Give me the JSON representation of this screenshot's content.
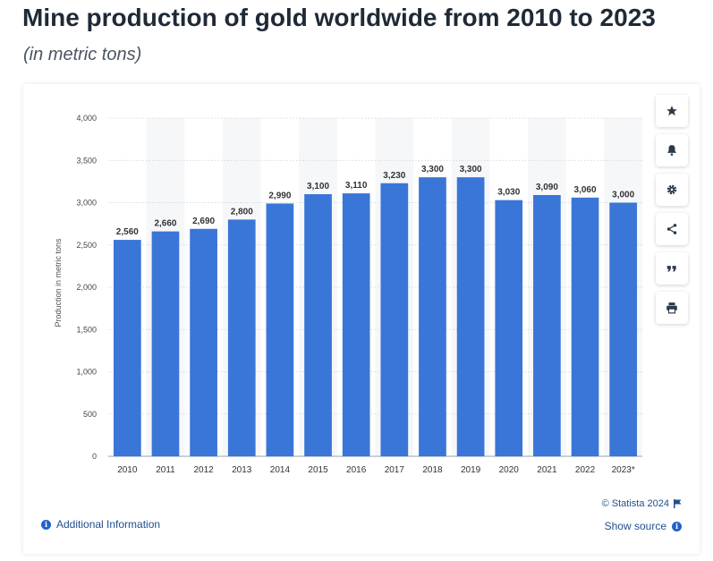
{
  "header": {
    "title": "Mine production of gold worldwide from 2010 to 2023",
    "subtitle": "(in metric tons)"
  },
  "toolbar": {
    "buttons": [
      {
        "name": "favorite",
        "icon": "star-icon"
      },
      {
        "name": "notification",
        "icon": "bell-icon"
      },
      {
        "name": "settings",
        "icon": "gear-icon"
      },
      {
        "name": "share",
        "icon": "share-icon"
      },
      {
        "name": "cite",
        "icon": "quote-icon"
      },
      {
        "name": "print",
        "icon": "print-icon"
      }
    ]
  },
  "footer": {
    "copyright": "© Statista 2024",
    "show_source": "Show source",
    "additional_info": "Additional Information"
  },
  "colors": {
    "bar": "#3a76d8",
    "accent": "#1f62c9"
  },
  "chart_data": {
    "type": "bar",
    "title": "Mine production of gold worldwide from 2010 to 2023",
    "subtitle": "(in metric tons)",
    "ylabel": "Production in metric tons",
    "xlabel": "",
    "ylim": [
      0,
      4000
    ],
    "yticks": [
      0,
      500,
      1000,
      1500,
      2000,
      2500,
      3000,
      3500,
      4000
    ],
    "ytick_labels": [
      "0",
      "500",
      "1,000",
      "1,500",
      "2,000",
      "2,500",
      "3,000",
      "3,500",
      "4,000"
    ],
    "grid": true,
    "categories": [
      "2010",
      "2011",
      "2012",
      "2013",
      "2014",
      "2015",
      "2016",
      "2017",
      "2018",
      "2019",
      "2020",
      "2021",
      "2022",
      "2023*"
    ],
    "values": [
      2560,
      2660,
      2690,
      2800,
      2990,
      3100,
      3110,
      3230,
      3300,
      3300,
      3030,
      3090,
      3060,
      3000
    ],
    "value_labels": [
      "2,560",
      "2,660",
      "2,690",
      "2,800",
      "2,990",
      "3,100",
      "3,110",
      "3,230",
      "3,300",
      "3,300",
      "3,030",
      "3,090",
      "3,060",
      "3,000"
    ]
  }
}
